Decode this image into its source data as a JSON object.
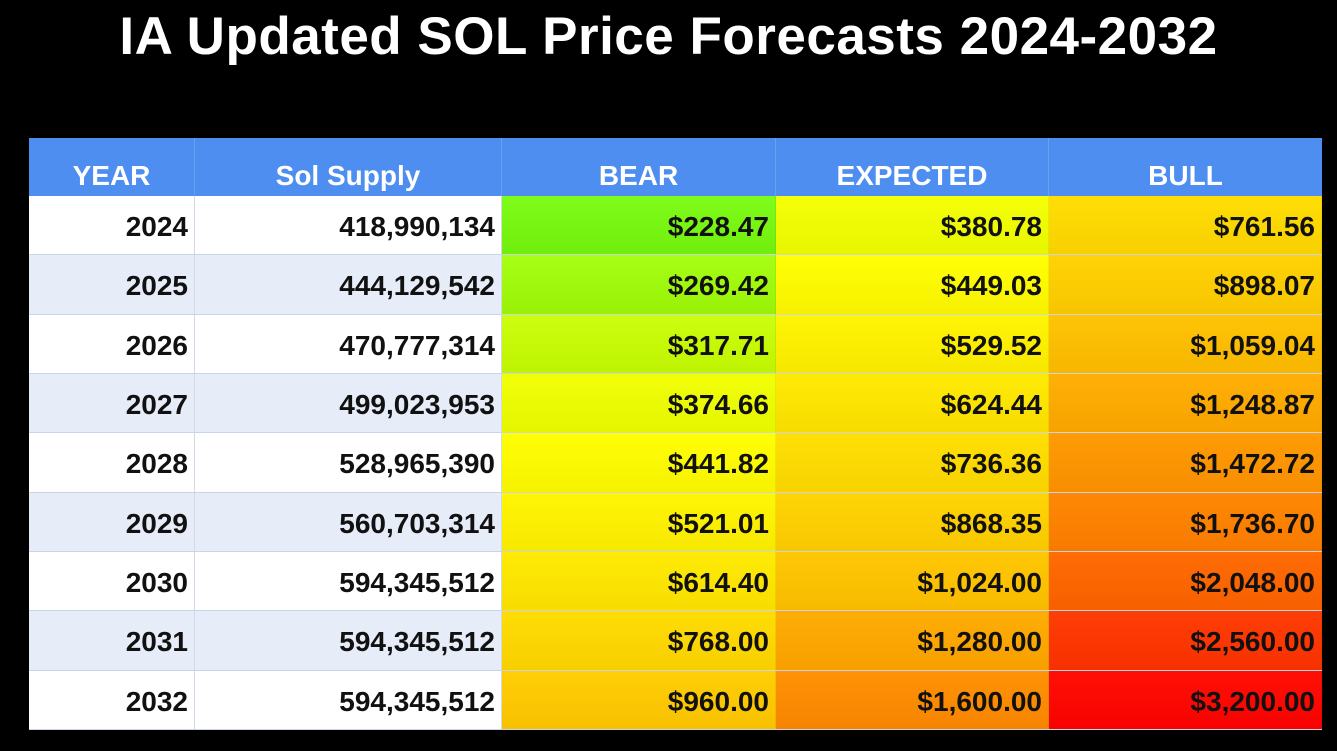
{
  "title": "IA Updated SOL Price Forecasts 2024-2032",
  "colors": {
    "header_bg": "#4e8ef0",
    "header_text": "#ffffff",
    "row_alt_bg": "#e6ecf8",
    "page_bg": "#000000"
  },
  "chart_data": {
    "type": "table",
    "title": "IA Updated SOL Price Forecasts 2024-2032",
    "columns": [
      "YEAR",
      "Sol Supply",
      "BEAR",
      "EXPECTED",
      "BULL"
    ],
    "rows": [
      {
        "year": "2024",
        "supply": "418,990,134",
        "bear": "$228.47",
        "expected": "$380.78",
        "bull": "$761.56"
      },
      {
        "year": "2025",
        "supply": "444,129,542",
        "bear": "$269.42",
        "expected": "$449.03",
        "bull": "$898.07"
      },
      {
        "year": "2026",
        "supply": "470,777,314",
        "bear": "$317.71",
        "expected": "$529.52",
        "bull": "$1,059.04"
      },
      {
        "year": "2027",
        "supply": "499,023,953",
        "bear": "$374.66",
        "expected": "$624.44",
        "bull": "$1,248.87"
      },
      {
        "year": "2028",
        "supply": "528,965,390",
        "bear": "$441.82",
        "expected": "$736.36",
        "bull": "$1,472.72"
      },
      {
        "year": "2029",
        "supply": "560,703,314",
        "bear": "$521.01",
        "expected": "$868.35",
        "bull": "$1,736.70"
      },
      {
        "year": "2030",
        "supply": "594,345,512",
        "bear": "$614.40",
        "expected": "$1,024.00",
        "bull": "$2,048.00"
      },
      {
        "year": "2031",
        "supply": "594,345,512",
        "bear": "$768.00",
        "expected": "$1,280.00",
        "bull": "$2,560.00"
      },
      {
        "year": "2032",
        "supply": "594,345,512",
        "bear": "$960.00",
        "expected": "$1,600.00",
        "bull": "$3,200.00"
      }
    ]
  }
}
